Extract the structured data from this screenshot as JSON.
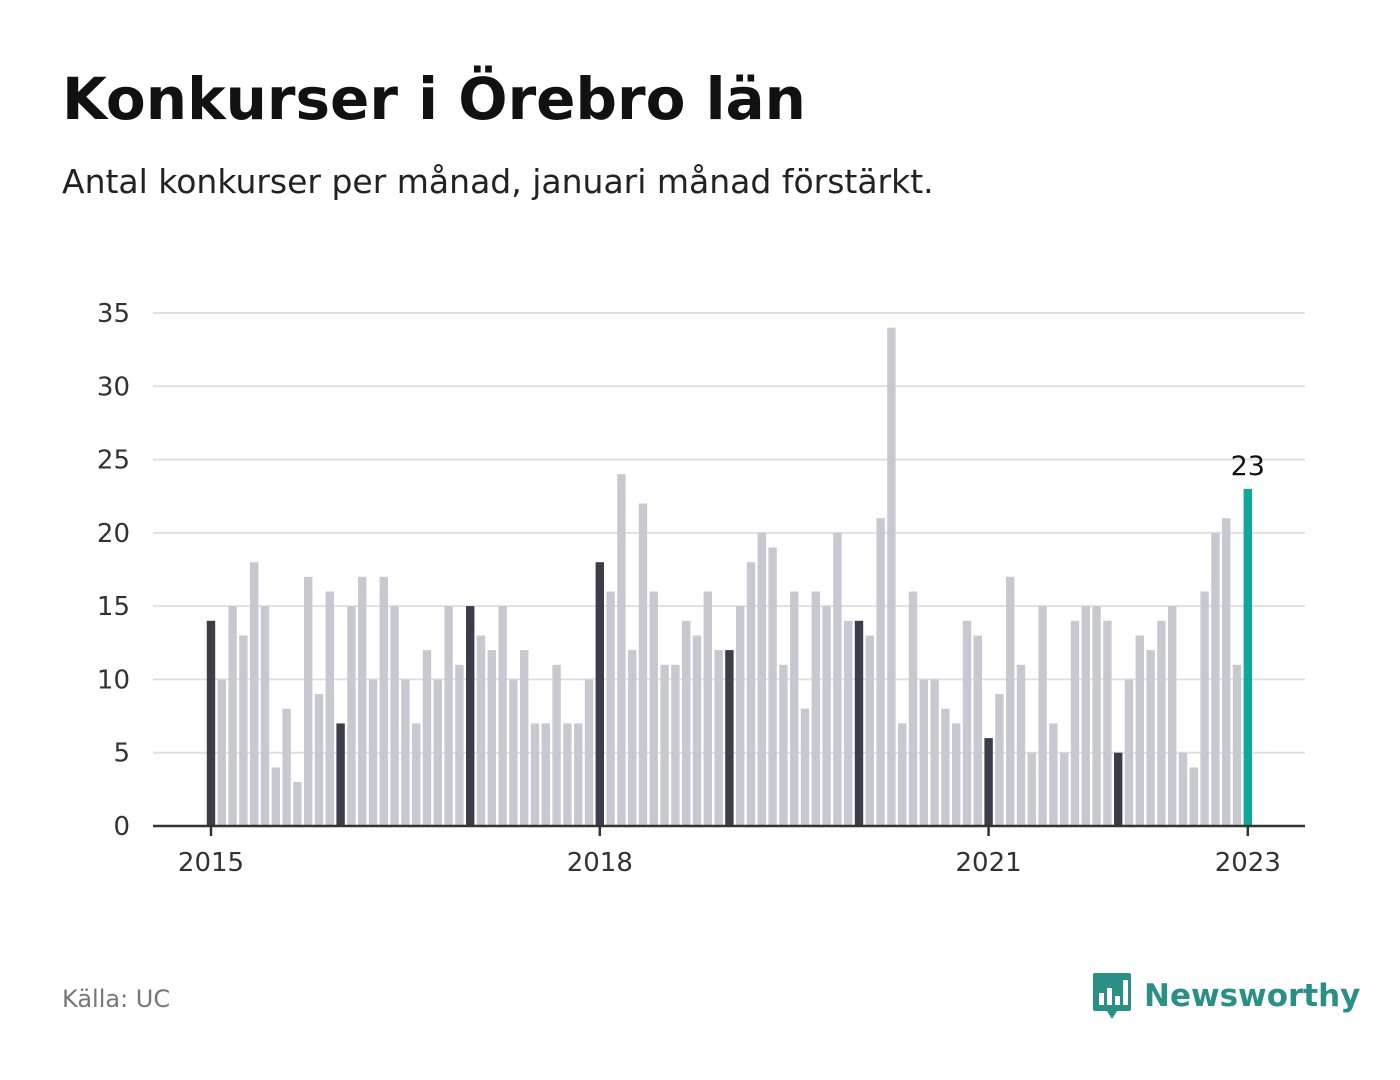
{
  "title": "Konkurser i Örebro län",
  "subtitle": "Antal konkurser per månad, januari månad förstärkt.",
  "source": "Källa: UC",
  "brand": {
    "name": "Newsworthy",
    "icon": "newsworthy-logo-icon",
    "color": "#2a8f84"
  },
  "colors": {
    "bar": "#c8c8d0",
    "january": "#3d3d4a",
    "latest": "#10a89a",
    "grid": "#e0e0e4",
    "axis": "#333333"
  },
  "chart_data": {
    "type": "bar",
    "title": "Konkurser i Örebro län",
    "subtitle": "Antal konkurser per månad, januari månad förstärkt.",
    "xlabel": "",
    "ylabel": "",
    "ylim": [
      0,
      35
    ],
    "yticks": [
      0,
      5,
      10,
      15,
      20,
      25,
      30,
      35
    ],
    "grid": true,
    "legend": "none",
    "x_start": "2015-01",
    "x_ticks": [
      {
        "month": "2015-01",
        "label": "2015"
      },
      {
        "month": "2018-01",
        "label": "2018"
      },
      {
        "month": "2021-01",
        "label": "2021"
      },
      {
        "month": "2023-01",
        "label": "2023"
      }
    ],
    "highlight": "january",
    "values": [
      14,
      10,
      15,
      13,
      18,
      15,
      4,
      8,
      3,
      17,
      9,
      16,
      7,
      15,
      17,
      10,
      17,
      15,
      10,
      7,
      12,
      10,
      15,
      11,
      15,
      13,
      12,
      15,
      10,
      12,
      7,
      7,
      11,
      7,
      7,
      10,
      18,
      16,
      24,
      12,
      22,
      16,
      11,
      11,
      14,
      13,
      16,
      12,
      12,
      15,
      18,
      20,
      19,
      11,
      16,
      8,
      16,
      15,
      20,
      14,
      14,
      13,
      21,
      34,
      7,
      16,
      10,
      10,
      8,
      7,
      14,
      13,
      6,
      9,
      17,
      11,
      5,
      15,
      7,
      5,
      14,
      15,
      15,
      14,
      5,
      10,
      13,
      12,
      14,
      15,
      5,
      4,
      16,
      20,
      21,
      11,
      23
    ],
    "data_labels": [
      {
        "month": "2023-01",
        "value": 23,
        "text": "23"
      }
    ]
  }
}
